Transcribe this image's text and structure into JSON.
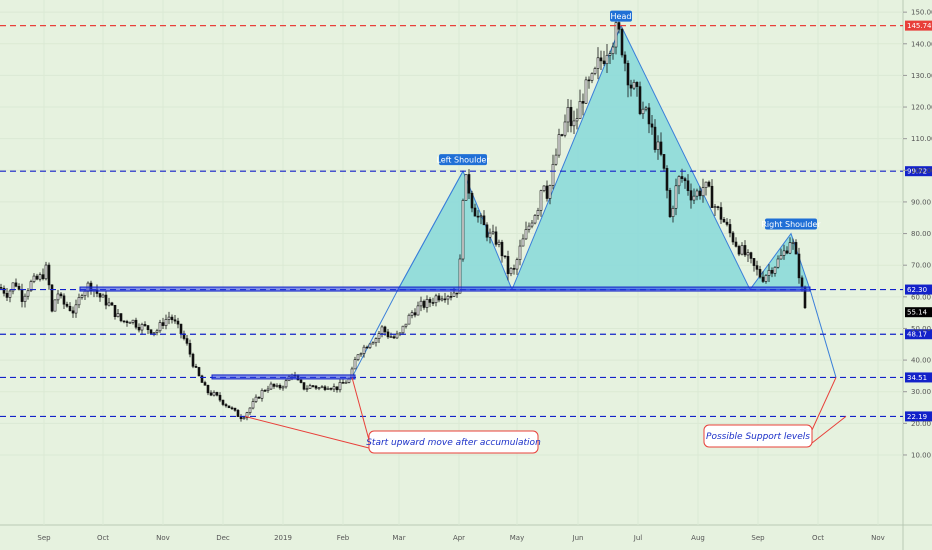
{
  "chart_data": {
    "type": "candlestick",
    "x_labels": [
      "Sep",
      "Oct",
      "Nov",
      "Dec",
      "2019",
      "Feb",
      "Mar",
      "Apr",
      "May",
      "Jun",
      "Jul",
      "Aug",
      "Sep",
      "Oct",
      "Nov"
    ],
    "y_ticks": [
      "150.00",
      "140.00",
      "130.00",
      "120.00",
      "110.00",
      "100.00",
      "90.00",
      "80.00",
      "70.00",
      "60.00",
      "50.00",
      "40.00",
      "30.00",
      "20.00",
      "10.00"
    ],
    "ylim": [
      5,
      153
    ],
    "last_price": 55.14,
    "levels": [
      {
        "value": 145.74,
        "label": "145.74",
        "color": "#e8403a"
      },
      {
        "value": 99.72,
        "label": "99.72",
        "color": "#1322c9"
      },
      {
        "value": 62.3,
        "label": "62.30",
        "color": "#1322c9"
      },
      {
        "value": 48.17,
        "label": "48.17",
        "color": "#1322c9"
      },
      {
        "value": 34.51,
        "label": "34.51",
        "color": "#1322c9"
      },
      {
        "value": 22.19,
        "label": "22.19",
        "color": "#1322c9"
      }
    ],
    "pattern_labels": {
      "left_shoulder": "Left Shoulder",
      "head": "Head",
      "right_shoulder": "Right Shoulder"
    },
    "annotations": {
      "accumulation": "Start upward move after accumulation",
      "support": "Possible Support levels"
    },
    "price_path": [
      [
        0,
        63
      ],
      [
        8,
        61
      ],
      [
        15,
        65
      ],
      [
        22,
        60
      ],
      [
        30,
        64
      ],
      [
        40,
        66
      ],
      [
        47,
        69
      ],
      [
        52,
        55
      ],
      [
        57,
        62
      ],
      [
        62,
        58
      ],
      [
        68,
        57
      ],
      [
        75,
        55
      ],
      [
        82,
        62
      ],
      [
        90,
        64
      ],
      [
        95,
        62
      ],
      [
        100,
        60
      ],
      [
        108,
        58
      ],
      [
        115,
        55
      ],
      [
        122,
        52
      ],
      [
        130,
        53
      ],
      [
        138,
        51
      ],
      [
        148,
        50
      ],
      [
        156,
        49
      ],
      [
        163,
        52
      ],
      [
        170,
        54
      ],
      [
        176,
        51
      ],
      [
        182,
        48
      ],
      [
        188,
        44
      ],
      [
        194,
        38
      ],
      [
        200,
        34
      ],
      [
        207,
        30
      ],
      [
        214,
        29
      ],
      [
        222,
        27
      ],
      [
        230,
        25
      ],
      [
        236,
        23
      ],
      [
        242,
        22
      ],
      [
        248,
        24
      ],
      [
        255,
        27
      ],
      [
        262,
        30
      ],
      [
        270,
        32
      ],
      [
        278,
        31
      ],
      [
        286,
        33
      ],
      [
        292,
        36
      ],
      [
        298,
        33
      ],
      [
        305,
        31
      ],
      [
        312,
        32
      ],
      [
        320,
        31
      ],
      [
        328,
        32
      ],
      [
        336,
        31
      ],
      [
        344,
        33
      ],
      [
        350,
        34
      ],
      [
        357,
        42
      ],
      [
        364,
        44
      ],
      [
        370,
        46
      ],
      [
        376,
        47
      ],
      [
        382,
        50
      ],
      [
        388,
        48
      ],
      [
        394,
        47
      ],
      [
        400,
        48
      ],
      [
        406,
        52
      ],
      [
        412,
        55
      ],
      [
        420,
        57
      ],
      [
        428,
        58
      ],
      [
        436,
        60
      ],
      [
        444,
        61
      ],
      [
        452,
        61
      ],
      [
        459,
        63
      ],
      [
        463,
        93
      ],
      [
        467,
        97
      ],
      [
        472,
        90
      ],
      [
        478,
        85
      ],
      [
        484,
        82
      ],
      [
        490,
        79
      ],
      [
        496,
        78
      ],
      [
        502,
        74
      ],
      [
        508,
        68
      ],
      [
        514,
        68
      ],
      [
        520,
        75
      ],
      [
        526,
        80
      ],
      [
        532,
        85
      ],
      [
        538,
        89
      ],
      [
        543,
        98
      ],
      [
        548,
        92
      ],
      [
        553,
        100
      ],
      [
        558,
        108
      ],
      [
        563,
        112
      ],
      [
        568,
        118
      ],
      [
        573,
        113
      ],
      [
        578,
        118
      ],
      [
        583,
        124
      ],
      [
        588,
        126
      ],
      [
        593,
        128
      ],
      [
        598,
        133
      ],
      [
        603,
        136
      ],
      [
        608,
        140
      ],
      [
        613,
        142
      ],
      [
        617,
        144
      ],
      [
        621,
        141
      ],
      [
        626,
        133
      ],
      [
        631,
        127
      ],
      [
        636,
        124
      ],
      [
        641,
        120
      ],
      [
        646,
        117
      ],
      [
        651,
        113
      ],
      [
        656,
        108
      ],
      [
        661,
        104
      ],
      [
        666,
        96
      ],
      [
        670,
        85
      ],
      [
        675,
        93
      ],
      [
        680,
        98
      ],
      [
        686,
        96
      ],
      [
        692,
        92
      ],
      [
        698,
        93
      ],
      [
        704,
        95
      ],
      [
        710,
        92
      ],
      [
        716,
        88
      ],
      [
        722,
        85
      ],
      [
        728,
        81
      ],
      [
        734,
        78
      ],
      [
        740,
        75
      ],
      [
        746,
        73
      ],
      [
        752,
        70
      ],
      [
        757,
        68
      ],
      [
        762,
        66
      ],
      [
        768,
        68
      ],
      [
        774,
        70
      ],
      [
        780,
        72
      ],
      [
        786,
        75
      ],
      [
        791,
        79
      ],
      [
        796,
        72
      ],
      [
        800,
        66
      ],
      [
        803,
        60
      ],
      [
        806,
        55
      ]
    ]
  }
}
